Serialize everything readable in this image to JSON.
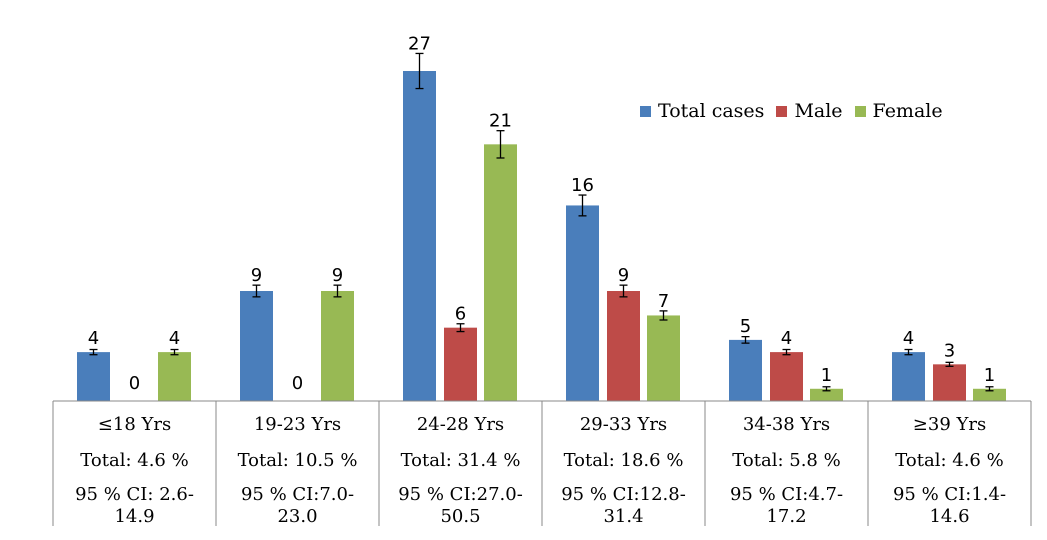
{
  "chart_data": {
    "type": "bar",
    "categories": [
      "≤18 Yrs",
      "19-23 Yrs",
      "24-28 Yrs",
      "29-33 Yrs",
      "34-38 Yrs",
      "≥39 Yrs"
    ],
    "series": [
      {
        "name": "Total cases",
        "color": "#4A7EBB",
        "values": [
          4,
          9,
          27,
          16,
          5,
          4
        ],
        "labels": [
          "4",
          "9",
          "27",
          "16",
          "5",
          "4"
        ]
      },
      {
        "name": "Male",
        "color": "#BE4B48",
        "values": [
          0,
          0,
          6,
          9,
          4,
          3
        ],
        "labels": [
          "0",
          "0",
          "6",
          "9",
          "4",
          "3"
        ]
      },
      {
        "name": "Female",
        "color": "#98B954",
        "values": [
          4,
          9,
          21,
          7,
          1,
          1
        ],
        "labels": [
          "4",
          "9",
          "21",
          "7",
          "1",
          "1"
        ]
      }
    ],
    "ylim": [
      0,
      30
    ],
    "legend_position": "top-right",
    "table": {
      "totals": [
        "Total: 4.6 %",
        "Total: 10.5 %",
        "Total: 31.4 %",
        "Total: 18.6 %",
        "Total: 5.8 %",
        "Total: 4.6 %"
      ],
      "ci": [
        "95 % CI: 2.6-14.9",
        "95 % CI:7.0-23.0",
        "95 % CI:27.0-50.5",
        "95 % CI:12.8-31.4",
        "95 % CI:4.7-17.2",
        "95 % CI:1.4-14.6"
      ]
    }
  }
}
